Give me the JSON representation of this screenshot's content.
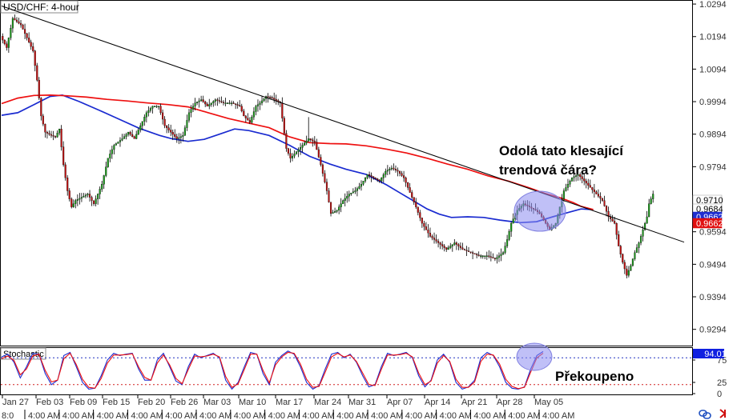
{
  "chart_data": [
    {
      "type": "candlestick",
      "title": "USD/CHF: 4-hour",
      "y_ticks": [
        "1.0294",
        "1.0194",
        "1.0094",
        "0.9994",
        "0.9894",
        "0.9794",
        "0.9594",
        "0.9494",
        "0.9394",
        "0.9294"
      ],
      "ylim": [
        0.9244,
        1.0304
      ],
      "x_ticks": [
        "Jan 27",
        "Feb 03",
        "Feb 09",
        "Feb 15",
        "Feb 20",
        "Feb 26",
        "Mar 03",
        "Mar 10",
        "Mar 17",
        "Mar 24",
        "Mar 31",
        "Apr 07",
        "Apr 14",
        "Apr 21",
        "Apr 28",
        "May 05"
      ],
      "price_labels": [
        {
          "value": "0.9710",
          "color": "#ffffff",
          "text": "#000000"
        },
        {
          "value": "0.9684",
          "color": "#ffffff",
          "text": "#000000"
        },
        {
          "value": "0.9662",
          "color": "#1f2fd0",
          "text": "#ffffff"
        },
        {
          "value": "0.9662",
          "color": "#e01010",
          "text": "#ffffff"
        }
      ],
      "annotation": "Odolá tato klesající trendová čára?",
      "series": [
        {
          "name": "",
          "color": "#1a2bd0",
          "kind": "moving-average",
          "points": [
            [
              0,
              0.9952
            ],
            [
              8,
              0.996
            ],
            [
              16,
              0.9985
            ],
            [
              24,
              1.001
            ],
            [
              30,
              1.0014
            ],
            [
              38,
              0.9995
            ],
            [
              48,
              0.9968
            ],
            [
              58,
              0.994
            ],
            [
              68,
              0.9912
            ],
            [
              78,
              0.989
            ],
            [
              84,
              0.988
            ],
            [
              92,
              0.9872
            ],
            [
              100,
              0.9878
            ],
            [
              108,
              0.9895
            ],
            [
              115,
              0.991
            ],
            [
              122,
              0.9905
            ],
            [
              132,
              0.989
            ],
            [
              142,
              0.986
            ],
            [
              152,
              0.9826
            ],
            [
              162,
              0.9802
            ],
            [
              170,
              0.9786
            ],
            [
              180,
              0.977
            ],
            [
              190,
              0.9738
            ],
            [
              197,
              0.9712
            ],
            [
              203,
              0.969
            ],
            [
              210,
              0.9664
            ],
            [
              216,
              0.9648
            ],
            [
              222,
              0.9638
            ],
            [
              230,
              0.964
            ],
            [
              238,
              0.9638
            ],
            [
              246,
              0.963
            ],
            [
              256,
              0.9622
            ],
            [
              264,
              0.9625
            ],
            [
              272,
              0.964
            ],
            [
              280,
              0.9654
            ],
            [
              286,
              0.9664
            ],
            [
              292,
              0.9662
            ]
          ]
        },
        {
          "name": "",
          "color": "#ee1010",
          "kind": "moving-average",
          "points": [
            [
              0,
              0.9988
            ],
            [
              8,
              1.0005
            ],
            [
              16,
              1.0013
            ],
            [
              24,
              1.0014
            ],
            [
              32,
              1.0012
            ],
            [
              42,
              1.0008
            ],
            [
              52,
              1.0001
            ],
            [
              62,
              0.9996
            ],
            [
              72,
              0.999
            ],
            [
              82,
              0.9985
            ],
            [
              92,
              0.9978
            ],
            [
              102,
              0.996
            ],
            [
              112,
              0.9942
            ],
            [
              122,
              0.9928
            ],
            [
              132,
              0.9914
            ],
            [
              142,
              0.9886
            ],
            [
              152,
              0.9868
            ],
            [
              162,
              0.9865
            ],
            [
              170,
              0.9864
            ],
            [
              180,
              0.9858
            ],
            [
              190,
              0.9848
            ],
            [
              200,
              0.9836
            ],
            [
              210,
              0.982
            ],
            [
              220,
              0.9802
            ],
            [
              230,
              0.9786
            ],
            [
              240,
              0.9766
            ],
            [
              250,
              0.975
            ],
            [
              260,
              0.973
            ],
            [
              268,
              0.9712
            ],
            [
              276,
              0.9698
            ],
            [
              282,
              0.9684
            ],
            [
              286,
              0.9672
            ],
            [
              292,
              0.9662
            ]
          ]
        }
      ],
      "trendline": {
        "x": [
          0,
          340
        ],
        "y": [
          1.0288,
          0.9562
        ]
      },
      "candle_path": [
        [
          0,
          1.0195
        ],
        [
          3,
          1.016
        ],
        [
          6,
          1.025
        ],
        [
          8,
          1.024
        ],
        [
          10,
          1.023
        ],
        [
          13,
          1.019
        ],
        [
          16,
          1.015
        ],
        [
          18,
          1.006
        ],
        [
          20,
          0.995
        ],
        [
          22,
          0.99
        ],
        [
          25,
          0.989
        ],
        [
          27,
          0.9885
        ],
        [
          29,
          0.991
        ],
        [
          31,
          0.98
        ],
        [
          33,
          0.972
        ],
        [
          35,
          0.967
        ],
        [
          37,
          0.969
        ],
        [
          40,
          0.97
        ],
        [
          43,
          0.971
        ],
        [
          46,
          0.968
        ],
        [
          50,
          0.974
        ],
        [
          53,
          0.982
        ],
        [
          56,
          0.986
        ],
        [
          60,
          0.988
        ],
        [
          63,
          0.99
        ],
        [
          66,
          0.988
        ],
        [
          69,
          0.992
        ],
        [
          72,
          0.996
        ],
        [
          75,
          0.998
        ],
        [
          78,
          0.998
        ],
        [
          81,
          0.992
        ],
        [
          84,
          0.99
        ],
        [
          87,
          0.988
        ],
        [
          90,
          0.989
        ],
        [
          93,
          0.996
        ],
        [
          96,
          0.999
        ],
        [
          99,
          1.0
        ],
        [
          102,
          0.998
        ],
        [
          106,
          1.0
        ],
        [
          110,
          0.999
        ],
        [
          114,
          0.999
        ],
        [
          118,
          0.998
        ],
        [
          120,
          0.995
        ],
        [
          123,
          0.993
        ],
        [
          126,
          0.998
        ],
        [
          128,
          0.999
        ],
        [
          131,
          1.001
        ],
        [
          134,
          1.0005
        ],
        [
          138,
          0.999
        ],
        [
          141,
          0.985
        ],
        [
          143,
          0.982
        ],
        [
          146,
          0.984
        ],
        [
          149,
          0.986
        ],
        [
          152,
          0.988
        ],
        [
          155,
          0.987
        ],
        [
          158,
          0.98
        ],
        [
          161,
          0.972
        ],
        [
          163,
          0.965
        ],
        [
          166,
          0.966
        ],
        [
          169,
          0.969
        ],
        [
          172,
          0.971
        ],
        [
          175,
          0.972
        ],
        [
          178,
          0.974
        ],
        [
          181,
          0.977
        ],
        [
          184,
          0.976
        ],
        [
          187,
          0.975
        ],
        [
          190,
          0.978
        ],
        [
          193,
          0.979
        ],
        [
          196,
          0.978
        ],
        [
          199,
          0.976
        ],
        [
          201,
          0.973
        ],
        [
          203,
          0.97
        ],
        [
          205,
          0.967
        ],
        [
          208,
          0.962
        ],
        [
          212,
          0.958
        ],
        [
          216,
          0.956
        ],
        [
          220,
          0.954
        ],
        [
          224,
          0.956
        ],
        [
          228,
          0.954
        ],
        [
          232,
          0.953
        ],
        [
          236,
          0.952
        ],
        [
          240,
          0.952
        ],
        [
          244,
          0.951
        ],
        [
          248,
          0.953
        ],
        [
          250,
          0.957
        ],
        [
          252,
          0.962
        ],
        [
          255,
          0.966
        ],
        [
          258,
          0.968
        ],
        [
          261,
          0.967
        ],
        [
          264,
          0.966
        ],
        [
          266,
          0.965
        ],
        [
          269,
          0.962
        ],
        [
          271,
          0.96
        ],
        [
          274,
          0.962
        ],
        [
          276,
          0.967
        ],
        [
          278,
          0.972
        ],
        [
          280,
          0.974
        ],
        [
          282,
          0.976
        ],
        [
          285,
          0.977
        ],
        [
          288,
          0.975
        ],
        [
          291,
          0.973
        ],
        [
          294,
          0.971
        ],
        [
          297,
          0.969
        ],
        [
          300,
          0.964
        ],
        [
          303,
          0.962
        ],
        [
          305,
          0.955
        ],
        [
          307,
          0.95
        ],
        [
          309,
          0.946
        ],
        [
          311,
          0.949
        ],
        [
          313,
          0.953
        ],
        [
          315,
          0.956
        ],
        [
          317,
          0.96
        ],
        [
          319,
          0.964
        ],
        [
          320,
          0.968
        ],
        [
          322,
          0.971
        ]
      ]
    },
    {
      "type": "line",
      "title": "Stochastic",
      "y_ticks": [
        "75",
        "25",
        "0"
      ],
      "ylim": [
        0,
        100
      ],
      "levels": [
        80,
        20
      ],
      "value_label": "94.01",
      "annotation": "Překoupeno",
      "series": [
        {
          "name": "",
          "color": "#1a2bd0",
          "y": [
            82,
            88,
            70,
            35,
            60,
            90,
            88,
            45,
            20,
            30,
            85,
            92,
            60,
            25,
            10,
            12,
            40,
            75,
            90,
            85,
            88,
            90,
            55,
            30,
            30,
            75,
            90,
            60,
            28,
            20,
            60,
            88,
            80,
            85,
            90,
            80,
            30,
            10,
            25,
            60,
            92,
            88,
            45,
            20,
            70,
            85,
            95,
            88,
            60,
            25,
            10,
            18,
            55,
            88,
            92,
            80,
            88,
            70,
            40,
            15,
            20,
            60,
            90,
            85,
            88,
            92,
            80,
            40,
            15,
            30,
            75,
            88,
            70,
            25,
            10,
            15,
            30,
            80,
            92,
            85,
            60,
            25,
            12,
            10,
            15,
            55,
            85,
            94
          ]
        },
        {
          "name": "",
          "color": "#ee1010",
          "y": [
            78,
            84,
            74,
            42,
            55,
            84,
            88,
            52,
            26,
            30,
            78,
            90,
            65,
            32,
            14,
            12,
            34,
            68,
            86,
            86,
            87,
            89,
            60,
            36,
            30,
            68,
            86,
            64,
            34,
            22,
            54,
            84,
            82,
            84,
            88,
            82,
            38,
            14,
            22,
            54,
            88,
            88,
            52,
            24,
            64,
            82,
            92,
            90,
            66,
            32,
            14,
            16,
            48,
            82,
            90,
            82,
            86,
            72,
            46,
            20,
            18,
            54,
            86,
            86,
            87,
            90,
            82,
            46,
            20,
            28,
            68,
            85,
            72,
            32,
            14,
            14,
            26,
            72,
            88,
            86,
            66,
            32,
            16,
            11,
            14,
            48,
            80,
            90
          ]
        }
      ]
    }
  ],
  "time_axis": {
    "first_label": "8:0",
    "labels": [
      "4:00 AM",
      "4:00 AM",
      "4:00 AM",
      "4:00 AM",
      "4:00 AM",
      "4:00 AM",
      "4:00 AM",
      "4:00 AM",
      "4:00 AM",
      "4:00 AM",
      "4:00 AM",
      "4:00 AM",
      "4:00 AM",
      "4:00 AM",
      "4:00 AM",
      "4:00 AM"
    ]
  },
  "colors": {
    "bull_candle": "#1a9a1a",
    "bear_candle": "#c01010",
    "highlight": "#8c8cf0"
  },
  "icons": [
    "sync-icon",
    "scroll-right-icon"
  ]
}
